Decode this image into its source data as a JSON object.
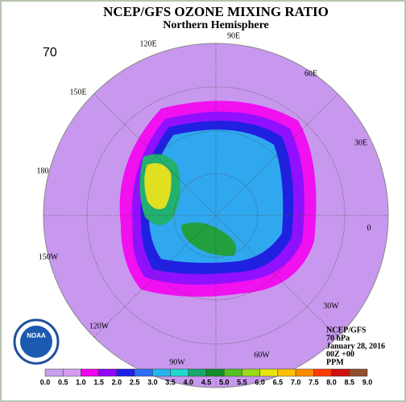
{
  "title": "NCEP/GFS OZONE MIXING RATIO",
  "subtitle": "Northern Hemisphere",
  "level_label": "70",
  "logo_text": "NOAA",
  "longitude_labels": [
    "90E",
    "60E",
    "30E",
    "0",
    "30W",
    "60W",
    "90W",
    "120W",
    "150W",
    "180",
    "150E",
    "120E"
  ],
  "info": [
    "NCEP/GFS",
    "70 hPa",
    "January 28, 2016",
    "00Z +00",
    "PPM"
  ],
  "colorbar": {
    "labels": [
      "0.0",
      "0.5",
      "1.0",
      "1.5",
      "2.0",
      "2.5",
      "3.0",
      "3.5",
      "4.0",
      "4.5",
      "5.0",
      "5.5",
      "6.0",
      "6.5",
      "7.0",
      "7.5",
      "8.0",
      "8.5",
      "9.0"
    ],
    "colors": [
      "#c9a0f0",
      "#d79cf0",
      "#f000f0",
      "#9000ff",
      "#1e1ee8",
      "#2d6ef5",
      "#26b4f0",
      "#20d8d0",
      "#17a870",
      "#128c28",
      "#55c020",
      "#9ad81a",
      "#e6e60e",
      "#ffc000",
      "#ff8c00",
      "#ff3c00",
      "#d01010",
      "#905030"
    ]
  }
}
